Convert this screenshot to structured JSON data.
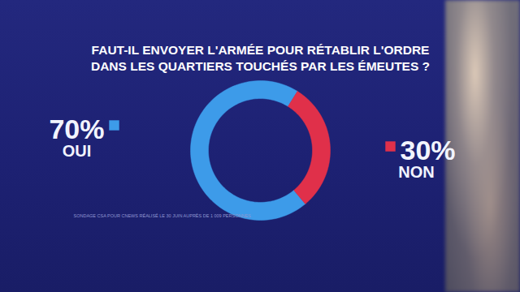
{
  "chart_data": {
    "type": "donut",
    "title": "FAUT-IL ENVOYER L'ARMÉE POUR RÉTABLIR L'ORDRE\nDANS LES QUARTIERS TOUCHÉS PAR LES ÉMEUTES ?",
    "caption": "SONDAGE CSA POUR CNEWS RÉALISÉ LE 30 JUIN AUPRÈS DE 1 009 PERSONNES",
    "categories": [
      "OUI",
      "NON"
    ],
    "values": [
      70,
      30
    ],
    "value_labels": [
      "70%",
      "30%"
    ],
    "colors": [
      "#3d9be9",
      "#e0304a"
    ],
    "data_labels": true
  }
}
